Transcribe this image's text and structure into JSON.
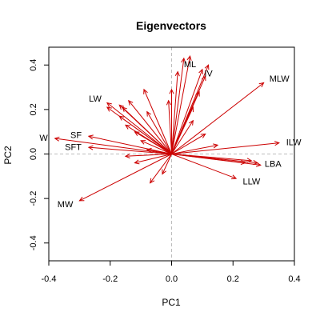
{
  "chart_data": {
    "type": "biplot-vectors",
    "title": "Eigenvectors",
    "xlabel": "PC1",
    "ylabel": "PC2",
    "xlim": [
      -0.4,
      0.4
    ],
    "ylim": [
      -0.48,
      0.48
    ],
    "x_ticks": [
      -0.4,
      -0.2,
      0.0,
      0.2,
      0.4
    ],
    "x_tick_labels": [
      "-0.4",
      "-0.2",
      "0.0",
      "0.2",
      "0.4"
    ],
    "y_ticks": [
      -0.4,
      -0.2,
      0.0,
      0.2,
      0.4
    ],
    "y_tick_labels": [
      "-0.4",
      "-0.2",
      "0.0",
      "0.2",
      "0.4"
    ],
    "reference_lines": {
      "x": 0,
      "y": 0,
      "style": "dashed",
      "color": "#bdbdbd"
    },
    "arrow_color": "#cc0000",
    "vectors": [
      {
        "label": "ML",
        "x": 0.06,
        "y": 0.44
      },
      {
        "label": "IV",
        "x": 0.12,
        "y": 0.4
      },
      {
        "label": "MLW",
        "x": 0.3,
        "y": 0.32
      },
      {
        "label": "ILW",
        "x": 0.35,
        "y": 0.05
      },
      {
        "label": "LBA",
        "x": 0.28,
        "y": -0.04
      },
      {
        "label": "LLW",
        "x": 0.21,
        "y": -0.11
      },
      {
        "label": "MW",
        "x": -0.3,
        "y": -0.21
      },
      {
        "label": "SFT",
        "x": -0.27,
        "y": 0.03
      },
      {
        "label": "SF",
        "x": -0.27,
        "y": 0.08
      },
      {
        "label": "W",
        "x": -0.38,
        "y": 0.07
      },
      {
        "label": "LW",
        "x": -0.21,
        "y": 0.23
      },
      {
        "label": "",
        "x": 0.04,
        "y": 0.43
      },
      {
        "label": "",
        "x": 0.02,
        "y": 0.37
      },
      {
        "label": "",
        "x": 0.1,
        "y": 0.38
      },
      {
        "label": "",
        "x": 0.11,
        "y": 0.35
      },
      {
        "label": "",
        "x": 0.09,
        "y": 0.28
      },
      {
        "label": "",
        "x": 0.07,
        "y": 0.21
      },
      {
        "label": "",
        "x": 0.07,
        "y": 0.15
      },
      {
        "label": "",
        "x": 0.0,
        "y": 0.29
      },
      {
        "label": "",
        "x": -0.01,
        "y": 0.24
      },
      {
        "label": "",
        "x": -0.09,
        "y": 0.29
      },
      {
        "label": "",
        "x": -0.08,
        "y": 0.19
      },
      {
        "label": "",
        "x": -0.14,
        "y": 0.24
      },
      {
        "label": "",
        "x": -0.17,
        "y": 0.22
      },
      {
        "label": "",
        "x": -0.16,
        "y": 0.21
      },
      {
        "label": "",
        "x": -0.21,
        "y": 0.21
      },
      {
        "label": "",
        "x": -0.17,
        "y": 0.17
      },
      {
        "label": "",
        "x": -0.15,
        "y": 0.13
      },
      {
        "label": "",
        "x": -0.12,
        "y": 0.1
      },
      {
        "label": "",
        "x": -0.1,
        "y": 0.06
      },
      {
        "label": "",
        "x": -0.08,
        "y": 0.02
      },
      {
        "label": "",
        "x": -0.15,
        "y": -0.01
      },
      {
        "label": "",
        "x": -0.12,
        "y": -0.04
      },
      {
        "label": "",
        "x": -0.07,
        "y": -0.13
      },
      {
        "label": "",
        "x": -0.03,
        "y": -0.09
      },
      {
        "label": "",
        "x": 0.11,
        "y": 0.09
      },
      {
        "label": "",
        "x": 0.15,
        "y": 0.04
      },
      {
        "label": "",
        "x": 0.24,
        "y": -0.04
      },
      {
        "label": "",
        "x": 0.26,
        "y": -0.03
      },
      {
        "label": "",
        "x": 0.29,
        "y": -0.05
      }
    ]
  }
}
